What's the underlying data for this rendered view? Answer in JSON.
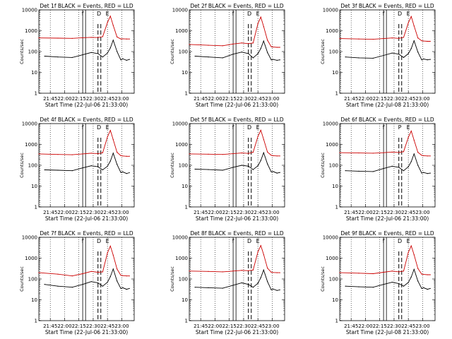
{
  "colors": {
    "events": "#000000",
    "lld": "#cc0000",
    "background": "#ffffff",
    "axes": "#000000"
  },
  "chart_data": [
    {
      "type": "line",
      "title": "Det 1f BLACK = Events, RED = LLD",
      "ylabel": "Counts/sec",
      "xlabel": "Start Time (22-Jul-06 21:33:00)",
      "x_ticks": [
        "21:45",
        "22:00",
        "22:15",
        "22:30",
        "22:45",
        "23:00"
      ],
      "y_ticks": [
        "1",
        "10",
        "100",
        "1000",
        "10000"
      ],
      "yscale": "log",
      "ylim": [
        1,
        10000
      ],
      "x_range_minutes": [
        0,
        100
      ],
      "event_marks": [
        "f",
        "D",
        "E"
      ],
      "series": [
        {
          "kind": "events",
          "color": "#000000",
          "x_minutes": [
            6,
            20,
            35,
            46,
            55,
            62,
            67,
            72,
            75,
            78,
            82,
            86,
            88,
            92,
            95
          ],
          "values": [
            60,
            55,
            52,
            70,
            90,
            80,
            55,
            85,
            150,
            350,
            100,
            40,
            45,
            38,
            42
          ]
        },
        {
          "kind": "lld",
          "color": "#cc0000",
          "x_minutes": [
            0,
            20,
            35,
            46,
            55,
            62,
            67,
            72,
            75,
            78,
            82,
            86,
            88,
            92,
            95
          ],
          "values": [
            450,
            440,
            430,
            460,
            480,
            470,
            520,
            2500,
            5000,
            1800,
            500,
            400,
            410,
            400,
            400
          ]
        }
      ]
    },
    {
      "type": "line",
      "title": "Det 2f BLACK = Events, RED = LLD",
      "ylabel": "Counts/sec",
      "xlabel": "Start Time (22-Jul-06 21:33:00)",
      "x_ticks": [
        "21:45",
        "22:00",
        "22:15",
        "22:30",
        "22:45",
        "23:00"
      ],
      "y_ticks": [
        "1",
        "10",
        "100",
        "1000",
        "10000"
      ],
      "yscale": "log",
      "ylim": [
        1,
        10000
      ],
      "x_range_minutes": [
        0,
        100
      ],
      "event_marks": [
        "f",
        "D",
        "E"
      ],
      "series": [
        {
          "kind": "events",
          "color": "#000000",
          "x_minutes": [
            6,
            20,
            35,
            46,
            55,
            62,
            67,
            72,
            75,
            78,
            82,
            86,
            88,
            92,
            95
          ],
          "values": [
            60,
            55,
            50,
            75,
            95,
            80,
            50,
            80,
            140,
            320,
            90,
            40,
            42,
            38,
            40
          ]
        },
        {
          "kind": "lld",
          "color": "#cc0000",
          "x_minutes": [
            0,
            20,
            35,
            46,
            55,
            62,
            67,
            72,
            75,
            78,
            82,
            86,
            88,
            92,
            95
          ],
          "values": [
            220,
            200,
            190,
            230,
            260,
            240,
            260,
            2200,
            4500,
            1600,
            350,
            170,
            165,
            160,
            160
          ]
        }
      ]
    },
    {
      "type": "line",
      "title": "Det 3f BLACK = Events, RED = LLD",
      "ylabel": "Counts/sec",
      "xlabel": "Start Time (22-Jul-08 21:33:00)",
      "x_ticks": [
        "21:45",
        "22:00",
        "22:15",
        "22:30",
        "22:45",
        "23:00"
      ],
      "y_ticks": [
        "1",
        "10",
        "100",
        "1000",
        "10000"
      ],
      "yscale": "log",
      "ylim": [
        1,
        10000
      ],
      "x_range_minutes": [
        0,
        100
      ],
      "event_marks": [
        "f",
        "D",
        "E"
      ],
      "series": [
        {
          "kind": "events",
          "color": "#000000",
          "x_minutes": [
            6,
            20,
            35,
            46,
            55,
            62,
            67,
            72,
            75,
            78,
            82,
            86,
            88,
            92,
            95
          ],
          "values": [
            55,
            50,
            48,
            65,
            85,
            75,
            52,
            80,
            140,
            330,
            95,
            40,
            44,
            40,
            42
          ]
        },
        {
          "kind": "lld",
          "color": "#cc0000",
          "x_minutes": [
            0,
            20,
            35,
            46,
            55,
            62,
            67,
            72,
            75,
            78,
            82,
            86,
            88,
            92,
            95
          ],
          "values": [
            420,
            400,
            390,
            420,
            450,
            430,
            480,
            2400,
            4800,
            1700,
            450,
            330,
            320,
            310,
            310
          ]
        }
      ]
    },
    {
      "type": "line",
      "title": "Det 4f BLACK = Events, RED = LLD",
      "ylabel": "Counts/sec",
      "xlabel": "Start Time (22-Jul-06 21:33:00)",
      "x_ticks": [
        "21:45",
        "22:00",
        "22:15",
        "22:30",
        "22:45",
        "23:00"
      ],
      "y_ticks": [
        "1",
        "10",
        "100",
        "1000",
        "10000"
      ],
      "yscale": "log",
      "ylim": [
        1,
        10000
      ],
      "x_range_minutes": [
        0,
        100
      ],
      "event_marks": [
        "f",
        "D",
        "E"
      ],
      "series": [
        {
          "kind": "events",
          "color": "#000000",
          "x_minutes": [
            6,
            20,
            35,
            46,
            55,
            62,
            67,
            72,
            75,
            78,
            82,
            86,
            88,
            92,
            95
          ],
          "values": [
            60,
            58,
            55,
            75,
            95,
            85,
            60,
            90,
            160,
            380,
            110,
            45,
            48,
            40,
            44
          ]
        },
        {
          "kind": "lld",
          "color": "#cc0000",
          "x_minutes": [
            0,
            20,
            35,
            46,
            55,
            62,
            67,
            72,
            75,
            78,
            82,
            86,
            88,
            92,
            95
          ],
          "values": [
            350,
            330,
            320,
            350,
            380,
            360,
            400,
            2300,
            4700,
            1700,
            420,
            290,
            280,
            270,
            270
          ]
        }
      ]
    },
    {
      "type": "line",
      "title": "Det 5f BLACK = Events, RED = LLD",
      "ylabel": "Counts/sec",
      "xlabel": "Start Time (22-Jul-06 21:33:00)",
      "x_ticks": [
        "21:45",
        "22:00",
        "22:15",
        "22:30",
        "22:45",
        "23:00"
      ],
      "y_ticks": [
        "1",
        "10",
        "100",
        "1000",
        "10000"
      ],
      "yscale": "log",
      "ylim": [
        1,
        10000
      ],
      "x_range_minutes": [
        0,
        100
      ],
      "event_marks": [
        "f",
        "D",
        "E"
      ],
      "series": [
        {
          "kind": "events",
          "color": "#000000",
          "x_minutes": [
            6,
            20,
            35,
            46,
            55,
            62,
            67,
            72,
            75,
            78,
            82,
            86,
            88,
            92,
            95
          ],
          "values": [
            65,
            62,
            58,
            80,
            100,
            90,
            62,
            95,
            170,
            400,
            115,
            48,
            50,
            42,
            45
          ]
        },
        {
          "kind": "lld",
          "color": "#cc0000",
          "x_minutes": [
            0,
            20,
            35,
            46,
            55,
            62,
            67,
            72,
            75,
            78,
            82,
            86,
            88,
            92,
            95
          ],
          "values": [
            350,
            340,
            330,
            360,
            390,
            370,
            420,
            2400,
            4800,
            1750,
            430,
            300,
            290,
            280,
            280
          ]
        }
      ]
    },
    {
      "type": "line",
      "title": "Det 6f BLACK = Events, RED = LLD",
      "ylabel": "Counts/sec",
      "xlabel": "Start Time (22-Jul-06 21:33:00)",
      "x_ticks": [
        "21:45",
        "22:00",
        "22:15",
        "22:30",
        "22:45",
        "23:00"
      ],
      "y_ticks": [
        "1",
        "10",
        "100",
        "1000",
        "10000"
      ],
      "yscale": "log",
      "ylim": [
        1,
        10000
      ],
      "x_range_minutes": [
        0,
        100
      ],
      "event_marks": [
        "f",
        "P",
        "E"
      ],
      "series": [
        {
          "kind": "events",
          "color": "#000000",
          "x_minutes": [
            6,
            20,
            35,
            46,
            55,
            62,
            67,
            72,
            75,
            78,
            82,
            86,
            88,
            92,
            95
          ],
          "values": [
            55,
            52,
            50,
            70,
            90,
            80,
            55,
            85,
            150,
            350,
            100,
            42,
            45,
            40,
            42
          ]
        },
        {
          "kind": "lld",
          "color": "#cc0000",
          "x_minutes": [
            0,
            20,
            35,
            46,
            55,
            62,
            67,
            72,
            75,
            78,
            82,
            86,
            88,
            92,
            95
          ],
          "values": [
            400,
            390,
            380,
            400,
            430,
            410,
            450,
            2200,
            4400,
            1600,
            420,
            300,
            290,
            280,
            280
          ]
        }
      ]
    },
    {
      "type": "line",
      "title": "Det 7f BLACK = Events, RED = LLD",
      "ylabel": "Counts/sec",
      "xlabel": "Start Time (22-Jul-06 21:33:00)",
      "x_ticks": [
        "21:45",
        "22:00",
        "22:15",
        "22:30",
        "22:45",
        "23:00"
      ],
      "y_ticks": [
        "1",
        "10",
        "100",
        "1000",
        "10000"
      ],
      "yscale": "log",
      "ylim": [
        1,
        10000
      ],
      "x_range_minutes": [
        0,
        100
      ],
      "event_marks": [
        "f",
        "D",
        "E"
      ],
      "series": [
        {
          "kind": "events",
          "color": "#000000",
          "x_minutes": [
            6,
            20,
            35,
            46,
            55,
            62,
            67,
            72,
            75,
            78,
            82,
            86,
            88,
            92,
            95
          ],
          "values": [
            55,
            45,
            40,
            55,
            75,
            65,
            45,
            70,
            130,
            300,
            80,
            35,
            38,
            32,
            35
          ]
        },
        {
          "kind": "lld",
          "color": "#cc0000",
          "x_minutes": [
            0,
            20,
            35,
            46,
            55,
            62,
            67,
            72,
            75,
            78,
            82,
            86,
            88,
            92,
            95
          ],
          "values": [
            200,
            170,
            140,
            180,
            230,
            210,
            220,
            1800,
            3800,
            1400,
            300,
            150,
            145,
            140,
            140
          ]
        }
      ]
    },
    {
      "type": "line",
      "title": "Det 8f BLACK = Events, RED = LLD",
      "ylabel": "Counts/sec",
      "xlabel": "Start Time (22-Jul-06 21:33:00)",
      "x_ticks": [
        "21:45",
        "22:00",
        "22:15",
        "22:30",
        "22:45",
        "23:00"
      ],
      "y_ticks": [
        "1",
        "10",
        "100",
        "1000",
        "10000"
      ],
      "yscale": "log",
      "ylim": [
        1,
        10000
      ],
      "x_range_minutes": [
        0,
        100
      ],
      "event_marks": [
        "f",
        "D",
        "E"
      ],
      "series": [
        {
          "kind": "events",
          "color": "#000000",
          "x_minutes": [
            6,
            20,
            35,
            46,
            55,
            62,
            67,
            72,
            75,
            78,
            82,
            86,
            88,
            92,
            95
          ],
          "values": [
            40,
            38,
            36,
            50,
            65,
            55,
            40,
            62,
            115,
            270,
            75,
            30,
            33,
            28,
            30
          ]
        },
        {
          "kind": "lld",
          "color": "#cc0000",
          "x_minutes": [
            0,
            20,
            35,
            46,
            55,
            62,
            67,
            72,
            75,
            78,
            82,
            86,
            88,
            92,
            95
          ],
          "values": [
            240,
            230,
            220,
            240,
            260,
            250,
            270,
            2000,
            4000,
            1500,
            330,
            210,
            205,
            200,
            200
          ]
        }
      ]
    },
    {
      "type": "line",
      "title": "Det 9f BLACK = Events, RED = LLD",
      "ylabel": "Counts/sec",
      "xlabel": "Start Time (22-Jul-08 21:33:00)",
      "x_ticks": [
        "21:45",
        "22:00",
        "22:15",
        "22:30",
        "22:45",
        "23:00"
      ],
      "y_ticks": [
        "1",
        "10",
        "100",
        "1000",
        "10000"
      ],
      "yscale": "log",
      "ylim": [
        1,
        10000
      ],
      "x_range_minutes": [
        0,
        100
      ],
      "event_marks": [
        "f",
        "D",
        "E"
      ],
      "series": [
        {
          "kind": "events",
          "color": "#000000",
          "x_minutes": [
            6,
            20,
            35,
            46,
            55,
            62,
            67,
            72,
            75,
            78,
            82,
            86,
            88,
            92,
            95
          ],
          "values": [
            45,
            42,
            40,
            55,
            70,
            60,
            45,
            68,
            125,
            290,
            80,
            35,
            38,
            32,
            35
          ]
        },
        {
          "kind": "lld",
          "color": "#cc0000",
          "x_minutes": [
            0,
            20,
            35,
            46,
            55,
            62,
            67,
            72,
            75,
            78,
            82,
            86,
            88,
            92,
            95
          ],
          "values": [
            200,
            190,
            180,
            210,
            240,
            220,
            240,
            1900,
            3900,
            1450,
            320,
            170,
            165,
            160,
            160
          ]
        }
      ]
    }
  ]
}
